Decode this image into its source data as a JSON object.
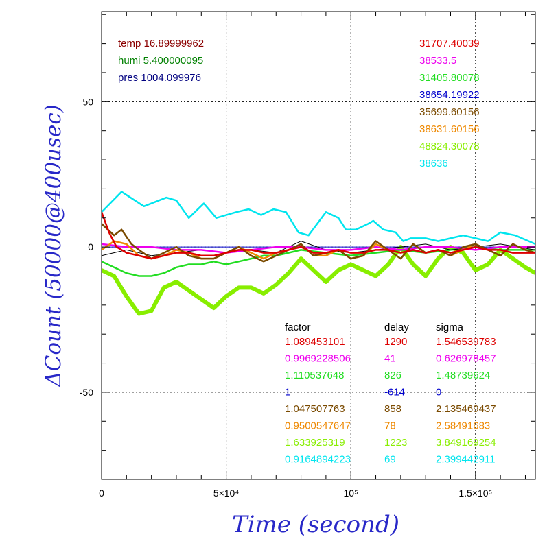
{
  "chart_data": {
    "type": "line",
    "title": "",
    "xlabel": "Time (second)",
    "ylabel": "ΔCount (50000@400usec)",
    "xlim": [
      0,
      174000
    ],
    "ylim": [
      -80,
      81
    ],
    "grid": true,
    "x_ticks": [
      {
        "value": 0,
        "label": "0"
      },
      {
        "value": 50000,
        "label": "5×10⁴"
      },
      {
        "value": 100000,
        "label": "10⁵"
      },
      {
        "value": 150000,
        "label": "1.5×10⁵"
      }
    ],
    "y_ticks": [
      {
        "value": -50,
        "label": "-50"
      },
      {
        "value": 0,
        "label": "0"
      },
      {
        "value": 50,
        "label": "50"
      }
    ],
    "environment": [
      {
        "label": "temp 16.89999962",
        "color": "#8b0000"
      },
      {
        "label": "humi 5.400000095",
        "color": "#008000"
      },
      {
        "label": "pres 1004.099976",
        "color": "#000080"
      }
    ],
    "series_values": [
      {
        "value": "31707.40039",
        "color": "#dd0000"
      },
      {
        "value": "38533.5",
        "color": "#ee00ee"
      },
      {
        "value": "31405.80078",
        "color": "#22dd22"
      },
      {
        "value": "38654.19922",
        "color": "#0000cc"
      },
      {
        "value": "35699.60156",
        "color": "#7a4a00"
      },
      {
        "value": "38631.60156",
        "color": "#ee8800"
      },
      {
        "value": "48824.30078",
        "color": "#88ee00"
      },
      {
        "value": "38636",
        "color": "#00e5ee"
      }
    ],
    "table": {
      "headers": [
        "factor",
        "delay",
        "sigma"
      ],
      "rows": [
        {
          "factor": "1.089453101",
          "delay": "1290",
          "sigma": "1.546539783",
          "color": "#dd0000"
        },
        {
          "factor": "0.9969228506",
          "delay": "41",
          "sigma": "0.626978457",
          "color": "#ee00ee"
        },
        {
          "factor": "1.110537648",
          "delay": "826",
          "sigma": "1.48739624",
          "color": "#22dd22"
        },
        {
          "factor": "1",
          "delay": "-614",
          "sigma": "0",
          "color": "#0000cc"
        },
        {
          "factor": "1.047507763",
          "delay": "858",
          "sigma": "2.135469437",
          "color": "#7a4a00"
        },
        {
          "factor": "0.9500547647",
          "delay": "78",
          "sigma": "2.58491683",
          "color": "#ee8800"
        },
        {
          "factor": "1.633925319",
          "delay": "1223",
          "sigma": "3.849169254",
          "color": "#88ee00"
        },
        {
          "factor": "0.9164894223",
          "delay": "69",
          "sigma": "2.399442911",
          "color": "#00e5ee"
        }
      ]
    },
    "series": [
      {
        "color": "#00e5ee",
        "x": [
          0,
          8000,
          17000,
          26000,
          30000,
          35000,
          41000,
          46000,
          54000,
          59000,
          64000,
          69000,
          74000,
          79000,
          83000,
          90000,
          95000,
          98000,
          102000,
          107000,
          109000,
          113000,
          118000,
          121000,
          124000,
          130000,
          135000,
          140000,
          145000,
          150000,
          155000,
          160000,
          166000,
          174000
        ],
        "y": [
          12,
          19,
          14,
          17,
          16,
          10,
          15,
          10,
          12,
          13,
          11,
          13,
          12,
          5,
          4,
          12,
          10,
          6,
          6,
          8,
          9,
          6,
          5,
          2,
          3,
          3,
          2,
          3,
          4,
          3,
          2,
          5,
          4,
          1
        ]
      },
      {
        "color": "#88ee00",
        "x": [
          0,
          5000,
          10000,
          15000,
          20000,
          25000,
          30000,
          35000,
          40000,
          45000,
          50000,
          55000,
          60000,
          65000,
          70000,
          75000,
          80000,
          85000,
          90000,
          95000,
          100000,
          105000,
          110000,
          115000,
          120000,
          125000,
          130000,
          135000,
          140000,
          145000,
          150000,
          155000,
          160000,
          165000,
          170000,
          174000
        ],
        "y": [
          -8,
          -10,
          -17,
          -23,
          -22,
          -14,
          -12,
          -15,
          -18,
          -21,
          -17,
          -14,
          -14,
          -16,
          -13,
          -9,
          -4,
          -8,
          -12,
          -8,
          -6,
          -8,
          -10,
          -6,
          0,
          -6,
          -10,
          -4,
          0,
          -2,
          -8,
          -6,
          -1,
          -4,
          -7,
          -9
        ]
      },
      {
        "color": "#22dd22",
        "x": [
          0,
          5000,
          10000,
          15000,
          20000,
          25000,
          30000,
          35000,
          40000,
          45000,
          50000,
          55000,
          60000,
          65000,
          70000,
          75000,
          80000,
          90000,
          100000,
          110000,
          120000,
          130000,
          140000,
          150000,
          160000,
          174000
        ],
        "y": [
          -5,
          -7,
          -9,
          -10,
          -10,
          -9,
          -7,
          -6,
          -6,
          -5,
          -6,
          -5,
          -4,
          -3,
          -3,
          -2,
          -1,
          -2,
          -3,
          -2,
          -1,
          -2,
          -1,
          0,
          -1,
          -1
        ]
      },
      {
        "color": "#0000cc",
        "x": [
          0,
          20000,
          40000,
          60000,
          80000,
          100000,
          120000,
          140000,
          160000,
          174000
        ],
        "y": [
          0,
          0,
          0,
          0,
          0,
          0,
          0,
          0,
          0,
          0
        ]
      },
      {
        "color": "#000000",
        "x": [
          0,
          10000,
          20000,
          30000,
          40000,
          50000,
          60000,
          70000,
          80000,
          90000,
          100000,
          110000,
          120000,
          130000,
          140000,
          150000,
          160000,
          174000
        ],
        "y": [
          -3,
          -1,
          -3,
          -2,
          -1,
          -2,
          -1,
          -2,
          2,
          -1,
          -2,
          -1,
          0,
          1,
          -1,
          0,
          1,
          -1
        ]
      },
      {
        "color": "#ee00ee",
        "x": [
          0,
          10000,
          20000,
          30000,
          40000,
          50000,
          60000,
          70000,
          80000,
          90000,
          100000,
          110000,
          120000,
          130000,
          140000,
          150000,
          160000,
          174000
        ],
        "y": [
          1,
          0,
          0,
          -1,
          -1,
          -2,
          -1,
          0,
          0,
          -1,
          -1,
          0,
          -1,
          0,
          0,
          -1,
          0,
          0
        ]
      },
      {
        "color": "#ee8800",
        "x": [
          0,
          5000,
          10000,
          15000,
          20000,
          25000,
          30000,
          35000,
          40000,
          45000,
          50000,
          55000,
          60000,
          65000,
          70000,
          75000,
          80000,
          85000,
          90000,
          95000,
          100000,
          105000,
          110000,
          115000,
          120000,
          125000,
          130000,
          135000,
          140000,
          145000,
          150000,
          155000,
          160000,
          165000,
          170000,
          174000
        ],
        "y": [
          -1,
          2,
          1,
          -3,
          -4,
          -3,
          -1,
          -2,
          -4,
          -4,
          -2,
          0,
          -2,
          -4,
          -2,
          -1,
          1,
          -3,
          -3,
          -1,
          -4,
          -3,
          1,
          -1,
          -4,
          1,
          -2,
          -1,
          -3,
          -1,
          1,
          -1,
          -3,
          1,
          -1,
          -2
        ]
      },
      {
        "color": "#7a4a00",
        "x": [
          0,
          5000,
          8000,
          12000,
          15000,
          20000,
          25000,
          30000,
          35000,
          40000,
          45000,
          50000,
          55000,
          60000,
          65000,
          70000,
          75000,
          80000,
          85000,
          90000,
          95000,
          100000,
          105000,
          110000,
          115000,
          120000,
          125000,
          130000,
          135000,
          140000,
          145000,
          150000,
          155000,
          160000,
          165000,
          170000,
          174000
        ],
        "y": [
          8,
          4,
          6,
          1,
          -1,
          -4,
          -2,
          0,
          -3,
          -4,
          -4,
          -2,
          0,
          -3,
          -5,
          -3,
          -1,
          1,
          -3,
          -2,
          -1,
          -4,
          -3,
          2,
          -1,
          -4,
          1,
          -2,
          -1,
          -3,
          0,
          1,
          -1,
          -3,
          1,
          -1,
          -2
        ]
      },
      {
        "color": "#dd0000",
        "x": [
          0,
          3000,
          6000,
          10000,
          15000,
          20000,
          25000,
          30000,
          35000,
          40000,
          45000,
          50000,
          55000,
          60000,
          65000,
          70000,
          75000,
          80000,
          85000,
          90000,
          95000,
          100000,
          105000,
          110000,
          115000,
          120000,
          125000,
          130000,
          135000,
          140000,
          145000,
          150000,
          155000,
          160000,
          165000,
          170000,
          174000
        ],
        "y": [
          12,
          5,
          0,
          -2,
          -3,
          -4,
          -3,
          -2,
          -2,
          -3,
          -3,
          -2,
          -1,
          -1,
          -2,
          -2,
          -1,
          0,
          -2,
          -2,
          -1,
          -2,
          -2,
          -1,
          -1,
          -2,
          -1,
          -2,
          -1,
          -2,
          -1,
          0,
          -1,
          -1,
          -2,
          -2,
          -2
        ]
      }
    ]
  }
}
